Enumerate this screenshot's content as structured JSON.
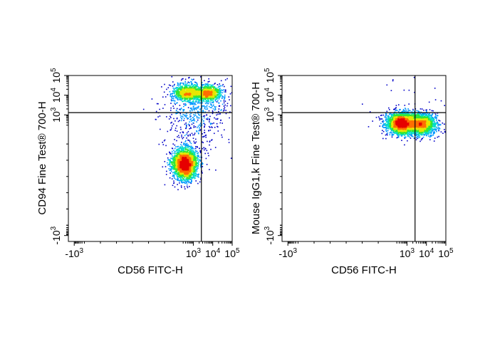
{
  "chart_data": [
    {
      "type": "scatter",
      "title": "",
      "xlabel": "CD56 FITC-H",
      "ylabel": "CD94 Fine Test® 700-H",
      "x_scale": "biexponential",
      "y_scale": "biexponential",
      "xlim": [
        -2000,
        100000
      ],
      "ylim": [
        -2000,
        100000
      ],
      "x_ticks": [
        {
          "value": -1000,
          "base": "-10",
          "exp": "3"
        },
        {
          "value": 1000,
          "base": "10",
          "exp": "3"
        },
        {
          "value": 10000,
          "base": "10",
          "exp": "4"
        },
        {
          "value": 100000,
          "base": "10",
          "exp": "5"
        }
      ],
      "y_ticks": [
        {
          "value": -1000,
          "base": "-10",
          "exp": "3"
        },
        {
          "value": 1000,
          "base": "10",
          "exp": "3"
        },
        {
          "value": 10000,
          "base": "10",
          "exp": "4"
        },
        {
          "value": 100000,
          "base": "10",
          "exp": "5"
        }
      ],
      "quadrant_gate": {
        "x": 2600,
        "y": 1300
      },
      "populations": [
        {
          "x": 350,
          "y": 80,
          "sx": 0.09,
          "sy": 0.11,
          "n": 2600
        },
        {
          "x": 450,
          "y": 14000,
          "sx": 0.1,
          "sy": 0.055,
          "n": 900
        },
        {
          "x": 5500,
          "y": 13000,
          "sx": 0.09,
          "sy": 0.05,
          "n": 850
        },
        {
          "x": 1200,
          "y": 1800,
          "sx": 0.25,
          "sy": 0.25,
          "n": 650
        }
      ],
      "color_map": [
        "#0000c8",
        "#0096ff",
        "#00dcc8",
        "#32e632",
        "#e6e600",
        "#ff6e00",
        "#e60000"
      ]
    },
    {
      "type": "scatter",
      "title": "",
      "xlabel": "CD56 FITC-H",
      "ylabel": "Mouse IgG1,k Fine Test® 700-H",
      "x_scale": "biexponential",
      "y_scale": "biexponential",
      "xlim": [
        -2000,
        100000
      ],
      "ylim": [
        -2000,
        100000
      ],
      "x_ticks": [
        {
          "value": -1000,
          "base": "-10",
          "exp": "3"
        },
        {
          "value": 1000,
          "base": "10",
          "exp": "3"
        },
        {
          "value": 10000,
          "base": "10",
          "exp": "4"
        },
        {
          "value": 100000,
          "base": "10",
          "exp": "5"
        }
      ],
      "y_ticks": [
        {
          "value": -1000,
          "base": "-10",
          "exp": "3"
        },
        {
          "value": 1000,
          "base": "10",
          "exp": "3"
        },
        {
          "value": 10000,
          "base": "10",
          "exp": "4"
        },
        {
          "value": 100000,
          "base": "10",
          "exp": "5"
        }
      ],
      "quadrant_gate": {
        "x": 2600,
        "y": 1300
      },
      "populations": [
        {
          "x": 500,
          "y": 400,
          "sx": 0.1,
          "sy": 0.075,
          "n": 2400
        },
        {
          "x": 5500,
          "y": 350,
          "sx": 0.09,
          "sy": 0.07,
          "n": 1500
        },
        {
          "x": 2000,
          "y": 350,
          "sx": 0.2,
          "sy": 0.08,
          "n": 500
        },
        {
          "x": 3000,
          "y": 15000,
          "sx": 0.35,
          "sy": 0.25,
          "n": 40
        }
      ],
      "color_map": [
        "#0000c8",
        "#0096ff",
        "#00dcc8",
        "#32e632",
        "#e6e600",
        "#ff6e00",
        "#e60000"
      ]
    }
  ]
}
